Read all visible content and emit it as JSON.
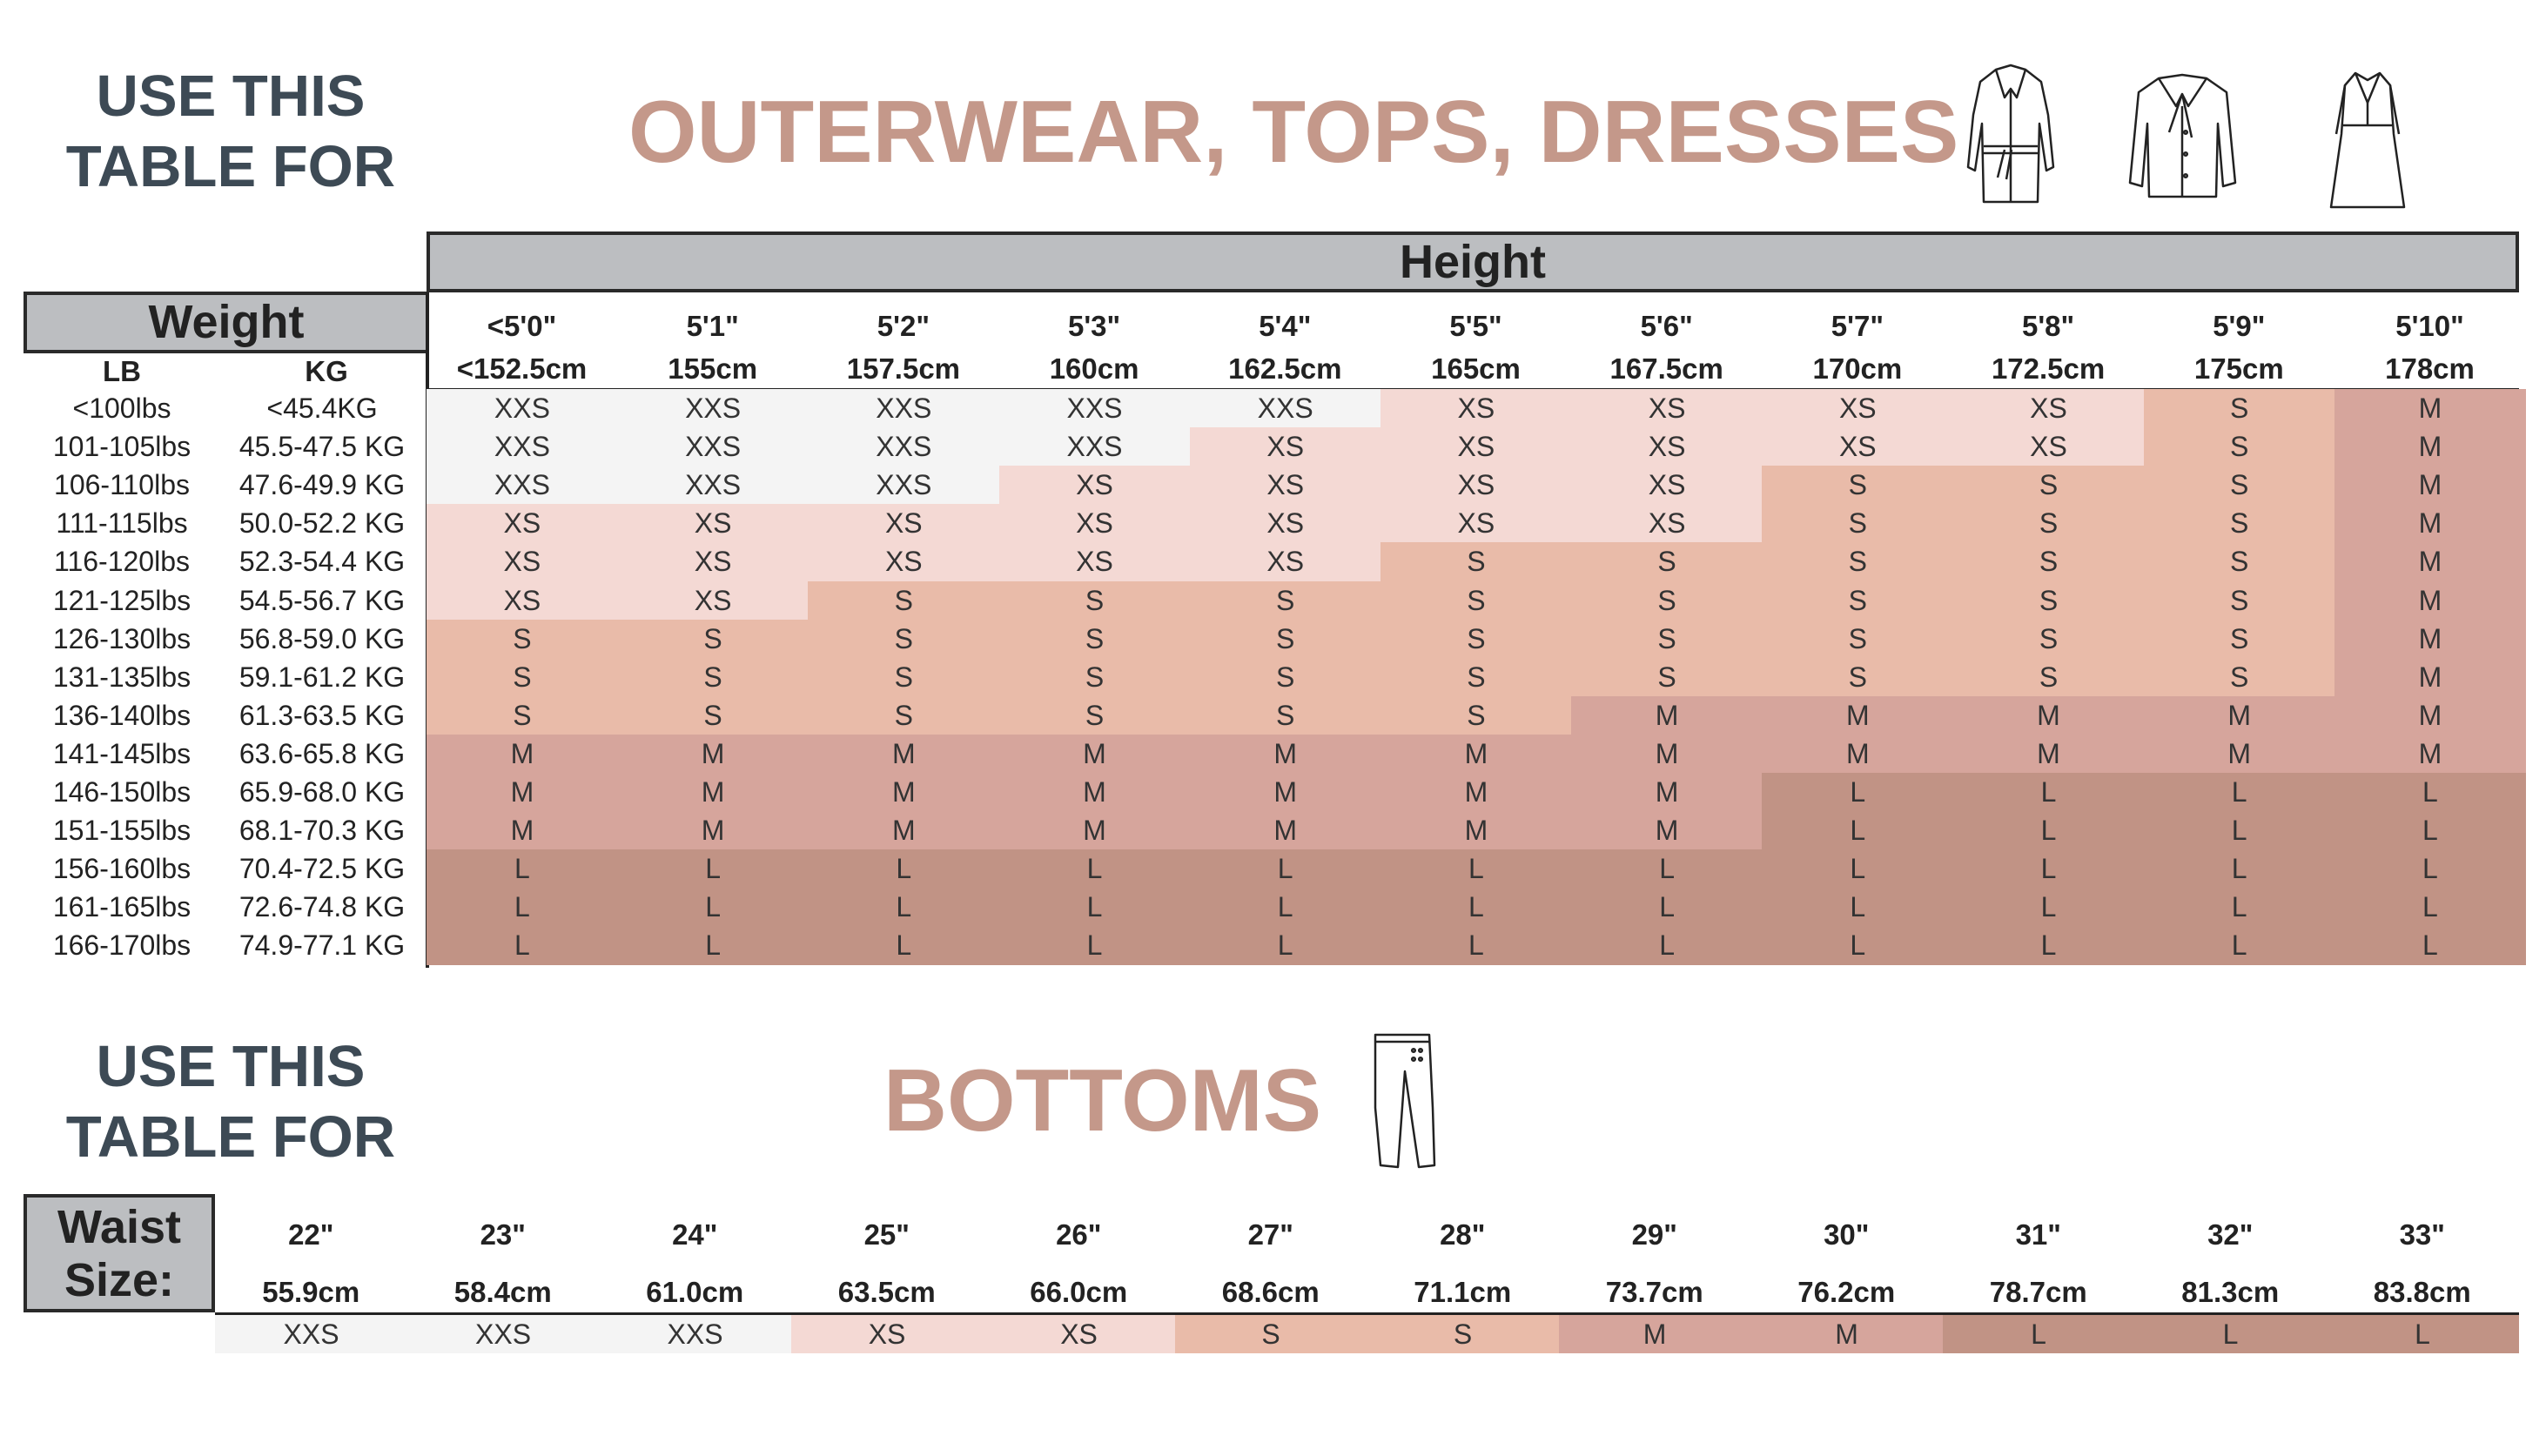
{
  "top": {
    "use_line1": "USE THIS",
    "use_line2": "TABLE FOR",
    "title": "OUTERWEAR, TOPS, DRESSES",
    "icons": [
      "coat-icon",
      "blouse-icon",
      "dress-icon"
    ],
    "height_label": "Height",
    "weight_label": "Weight",
    "lb_label": "LB",
    "kg_label": "KG",
    "heights": [
      {
        "ft": "<5'0\"",
        "cm": "<152.5cm"
      },
      {
        "ft": "5'1\"",
        "cm": "155cm"
      },
      {
        "ft": "5'2\"",
        "cm": "157.5cm"
      },
      {
        "ft": "5'3\"",
        "cm": "160cm"
      },
      {
        "ft": "5'4\"",
        "cm": "162.5cm"
      },
      {
        "ft": "5'5\"",
        "cm": "165cm"
      },
      {
        "ft": "5'6\"",
        "cm": "167.5cm"
      },
      {
        "ft": "5'7\"",
        "cm": "170cm"
      },
      {
        "ft": "5'8\"",
        "cm": "172.5cm"
      },
      {
        "ft": "5'9\"",
        "cm": "175cm"
      },
      {
        "ft": "5'10\"",
        "cm": "178cm"
      }
    ],
    "rows": [
      {
        "lb": "<100lbs",
        "kg": "<45.4KG",
        "sizes": [
          "XXS",
          "XXS",
          "XXS",
          "XXS",
          "XXS",
          "XS",
          "XS",
          "XS",
          "XS",
          "S",
          "M"
        ]
      },
      {
        "lb": "101-105lbs",
        "kg": "45.5-47.5 KG",
        "sizes": [
          "XXS",
          "XXS",
          "XXS",
          "XXS",
          "XS",
          "XS",
          "XS",
          "XS",
          "XS",
          "S",
          "M"
        ]
      },
      {
        "lb": "106-110lbs",
        "kg": "47.6-49.9 KG",
        "sizes": [
          "XXS",
          "XXS",
          "XXS",
          "XS",
          "XS",
          "XS",
          "XS",
          "S",
          "S",
          "S",
          "M"
        ]
      },
      {
        "lb": "111-115lbs",
        "kg": "50.0-52.2 KG",
        "sizes": [
          "XS",
          "XS",
          "XS",
          "XS",
          "XS",
          "XS",
          "XS",
          "S",
          "S",
          "S",
          "M"
        ]
      },
      {
        "lb": "116-120lbs",
        "kg": "52.3-54.4 KG",
        "sizes": [
          "XS",
          "XS",
          "XS",
          "XS",
          "XS",
          "S",
          "S",
          "S",
          "S",
          "S",
          "M"
        ]
      },
      {
        "lb": "121-125lbs",
        "kg": "54.5-56.7 KG",
        "sizes": [
          "XS",
          "XS",
          "S",
          "S",
          "S",
          "S",
          "S",
          "S",
          "S",
          "S",
          "M"
        ]
      },
      {
        "lb": "126-130lbs",
        "kg": "56.8-59.0 KG",
        "sizes": [
          "S",
          "S",
          "S",
          "S",
          "S",
          "S",
          "S",
          "S",
          "S",
          "S",
          "M"
        ]
      },
      {
        "lb": "131-135lbs",
        "kg": "59.1-61.2 KG",
        "sizes": [
          "S",
          "S",
          "S",
          "S",
          "S",
          "S",
          "S",
          "S",
          "S",
          "S",
          "M"
        ]
      },
      {
        "lb": "136-140lbs",
        "kg": "61.3-63.5 KG",
        "sizes": [
          "S",
          "S",
          "S",
          "S",
          "S",
          "S",
          "M",
          "M",
          "M",
          "M",
          "M"
        ]
      },
      {
        "lb": "141-145lbs",
        "kg": "63.6-65.8 KG",
        "sizes": [
          "M",
          "M",
          "M",
          "M",
          "M",
          "M",
          "M",
          "M",
          "M",
          "M",
          "M"
        ]
      },
      {
        "lb": "146-150lbs",
        "kg": "65.9-68.0 KG",
        "sizes": [
          "M",
          "M",
          "M",
          "M",
          "M",
          "M",
          "M",
          "L",
          "L",
          "L",
          "L"
        ]
      },
      {
        "lb": "151-155lbs",
        "kg": "68.1-70.3 KG",
        "sizes": [
          "M",
          "M",
          "M",
          "M",
          "M",
          "M",
          "M",
          "L",
          "L",
          "L",
          "L"
        ]
      },
      {
        "lb": "156-160lbs",
        "kg": "70.4-72.5 KG",
        "sizes": [
          "L",
          "L",
          "L",
          "L",
          "L",
          "L",
          "L",
          "L",
          "L",
          "L",
          "L"
        ]
      },
      {
        "lb": "161-165lbs",
        "kg": "72.6-74.8 KG",
        "sizes": [
          "L",
          "L",
          "L",
          "L",
          "L",
          "L",
          "L",
          "L",
          "L",
          "L",
          "L"
        ]
      },
      {
        "lb": "166-170lbs",
        "kg": "74.9-77.1 KG",
        "sizes": [
          "L",
          "L",
          "L",
          "L",
          "L",
          "L",
          "L",
          "L",
          "L",
          "L",
          "L"
        ]
      }
    ]
  },
  "bottom": {
    "use_line1": "USE THIS",
    "use_line2": "TABLE FOR",
    "title": "BOTTOMS",
    "icons": [
      "pants-icon"
    ],
    "waist_line1": "Waist",
    "waist_line2": "Size:",
    "waists": [
      {
        "in": "22\"",
        "cm": "55.9cm"
      },
      {
        "in": "23\"",
        "cm": "58.4cm"
      },
      {
        "in": "24\"",
        "cm": "61.0cm"
      },
      {
        "in": "25\"",
        "cm": "63.5cm"
      },
      {
        "in": "26\"",
        "cm": "66.0cm"
      },
      {
        "in": "27\"",
        "cm": "68.6cm"
      },
      {
        "in": "28\"",
        "cm": "71.1cm"
      },
      {
        "in": "29\"",
        "cm": "73.7cm"
      },
      {
        "in": "30\"",
        "cm": "76.2cm"
      },
      {
        "in": "31\"",
        "cm": "78.7cm"
      },
      {
        "in": "32\"",
        "cm": "81.3cm"
      },
      {
        "in": "33\"",
        "cm": "83.8cm"
      }
    ],
    "sizes": [
      "XXS",
      "XXS",
      "XXS",
      "XS",
      "XS",
      "S",
      "S",
      "M",
      "M",
      "L",
      "L",
      "L"
    ]
  },
  "size_colors": {
    "XXS": "#f4f4f4",
    "XS": "#f4d9d4",
    "S": "#e9bba9",
    "M": "#d6a59c",
    "L": "#c19385"
  },
  "colors": {
    "title": "#c4988a",
    "use_title": "#3d4a55",
    "header_gray": "#bcbec1"
  }
}
